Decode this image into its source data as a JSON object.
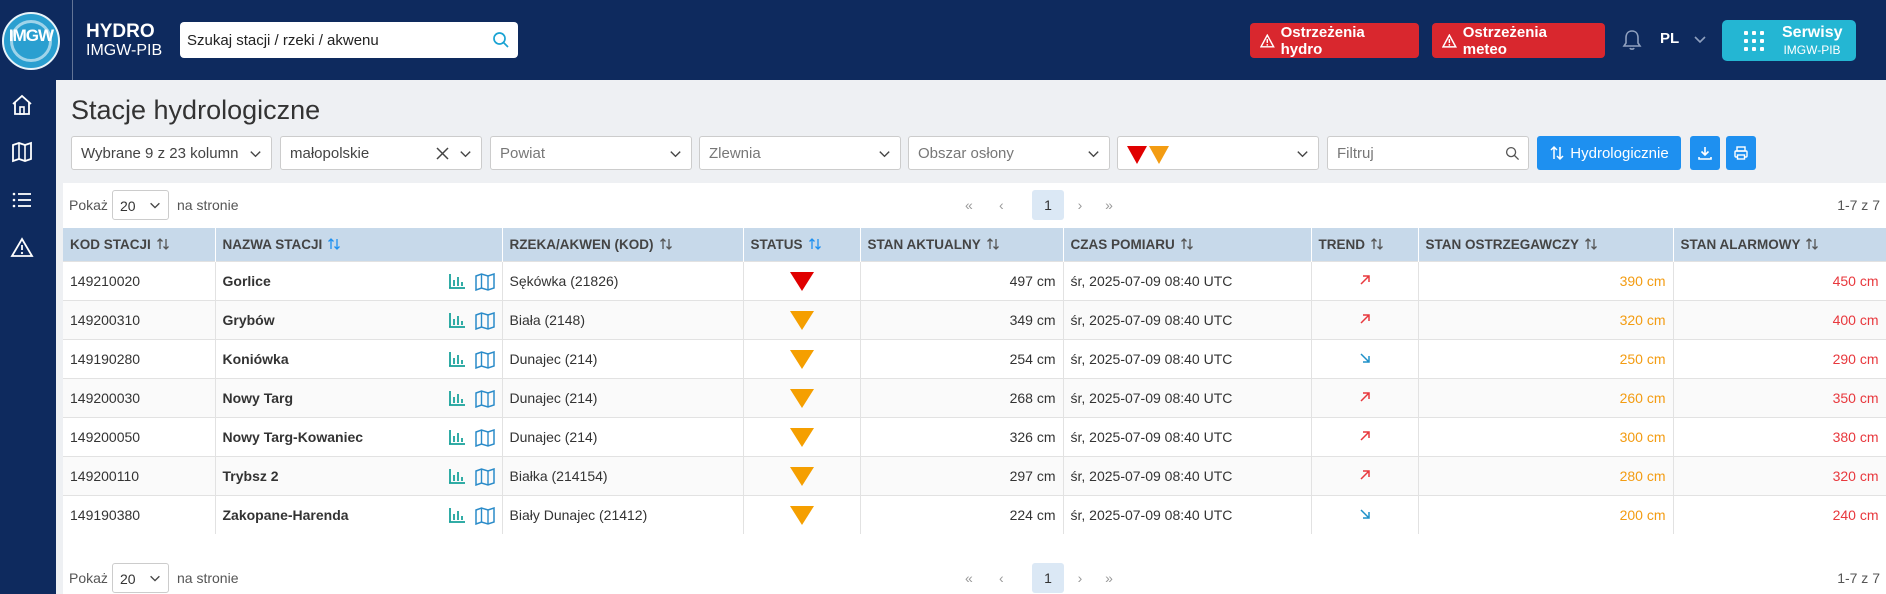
{
  "header": {
    "logo_text": "IMGW",
    "brand_line1": "HYDRO",
    "brand_line2": "IMGW-PIB",
    "search_placeholder": "Szukaj stacji / rzeki / akwenu",
    "warn_hydro_label": "Ostrzeżenia hydro",
    "warn_meteo_label": "Ostrzeżenia meteo",
    "language": "PL",
    "services_line1": "Serwisy",
    "services_line2": "IMGW-PIB",
    "accent_color": "#0e2a5e",
    "warn_color": "#d9272e",
    "services_color": "#24b6d3"
  },
  "sidebar": {
    "items": [
      {
        "icon": "home-icon"
      },
      {
        "icon": "map-icon"
      },
      {
        "icon": "list-icon"
      },
      {
        "icon": "warning-icon"
      }
    ]
  },
  "page": {
    "title": "Stacje hydrologiczne"
  },
  "filters": {
    "columns_select": "Wybrane 9 z 23 kolumn",
    "voivodeship_select": "małopolskie",
    "county_placeholder": "Powiat",
    "catchment_placeholder": "Zlewnia",
    "protection_area_placeholder": "Obszar osłony",
    "status_filter_icons": [
      "red-triangle",
      "orange-triangle"
    ],
    "filter_placeholder": "Filtruj",
    "hydro_button_label": "Hydrologicznie"
  },
  "pagination": {
    "show_label": "Pokaż",
    "per_page": "20",
    "per_page_suffix": "na stronie",
    "first": "«",
    "prev": "‹",
    "current_page": "1",
    "next": "›",
    "last": "»",
    "count_text": "1-7 z 7"
  },
  "table": {
    "headers": [
      "KOD STACJI",
      "NAZWA STACJI",
      "RZEKA/AKWEN (KOD)",
      "STATUS",
      "STAN AKTUALNY",
      "CZAS POMIARU",
      "TREND",
      "STAN OSTRZEGAWCZY",
      "STAN ALARMOWY"
    ],
    "rows": [
      {
        "code": "149210020",
        "name": "Gorlice",
        "river": "Sękówka (21826)",
        "status": "red",
        "level": "497 cm",
        "time": "śr, 2025-07-09 08:40 UTC",
        "trend": "up",
        "warning": "390 cm",
        "alarm": "450 cm"
      },
      {
        "code": "149200310",
        "name": "Grybów",
        "river": "Biała (2148)",
        "status": "orange",
        "level": "349 cm",
        "time": "śr, 2025-07-09 08:40 UTC",
        "trend": "up",
        "warning": "320 cm",
        "alarm": "400 cm"
      },
      {
        "code": "149190280",
        "name": "Koniówka",
        "river": "Dunajec (214)",
        "status": "orange",
        "level": "254 cm",
        "time": "śr, 2025-07-09 08:40 UTC",
        "trend": "down",
        "warning": "250 cm",
        "alarm": "290 cm"
      },
      {
        "code": "149200030",
        "name": "Nowy Targ",
        "river": "Dunajec (214)",
        "status": "orange",
        "level": "268 cm",
        "time": "śr, 2025-07-09 08:40 UTC",
        "trend": "up",
        "warning": "260 cm",
        "alarm": "350 cm"
      },
      {
        "code": "149200050",
        "name": "Nowy Targ-Kowaniec",
        "river": "Dunajec (214)",
        "status": "orange",
        "level": "326 cm",
        "time": "śr, 2025-07-09 08:40 UTC",
        "trend": "up",
        "warning": "300 cm",
        "alarm": "380 cm"
      },
      {
        "code": "149200110",
        "name": "Trybsz 2",
        "river": "Białka (214154)",
        "status": "orange",
        "level": "297 cm",
        "time": "śr, 2025-07-09 08:40 UTC",
        "trend": "up",
        "warning": "280 cm",
        "alarm": "320 cm"
      },
      {
        "code": "149190380",
        "name": "Zakopane-Harenda",
        "river": "Biały Dunajec (21412)",
        "status": "orange",
        "level": "224 cm",
        "time": "śr, 2025-07-09 08:40 UTC",
        "trend": "down",
        "warning": "200 cm",
        "alarm": "240 cm"
      }
    ]
  },
  "colors": {
    "status_red": "#e00000",
    "status_orange": "#f59f00",
    "warning_text": "#f39c12",
    "alarm_text": "#e8383d",
    "trend_up": "#e8383d",
    "trend_down": "#1e90c8",
    "button_blue": "#1e90f0",
    "table_header_bg": "#c7d9ea"
  }
}
